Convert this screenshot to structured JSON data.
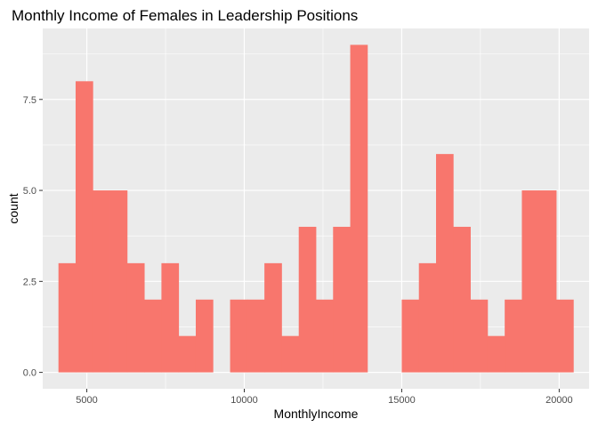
{
  "chart_data": {
    "type": "bar",
    "subtype": "histogram",
    "title": "Monthly Income of Females in Leadership Positions",
    "xlabel": "MonthlyIncome",
    "ylabel": "count",
    "bar_color": "#F8766D",
    "panel_background": "#EBEBEB",
    "grid_color": "#FFFFFF",
    "grid": true,
    "legend": "none",
    "xlim": [
      3600,
      20950
    ],
    "ylim": [
      -0.45,
      9.45
    ],
    "x_ticks": [
      5000,
      10000,
      15000,
      20000
    ],
    "x_tick_labels": [
      "5000",
      "10000",
      "15000",
      "20000"
    ],
    "y_ticks": [
      0,
      2.5,
      5,
      7.5
    ],
    "y_tick_labels": [
      "0.0",
      "2.5",
      "5.0",
      "7.5"
    ],
    "bin_width": 545,
    "bins": [
      {
        "x0": 4100,
        "x1": 4645,
        "count": 3
      },
      {
        "x0": 4645,
        "x1": 5190,
        "count": 8
      },
      {
        "x0": 5190,
        "x1": 5735,
        "count": 5
      },
      {
        "x0": 5735,
        "x1": 6280,
        "count": 5
      },
      {
        "x0": 6280,
        "x1": 6825,
        "count": 3
      },
      {
        "x0": 6825,
        "x1": 7370,
        "count": 2
      },
      {
        "x0": 7370,
        "x1": 7915,
        "count": 3
      },
      {
        "x0": 7915,
        "x1": 8460,
        "count": 1
      },
      {
        "x0": 8460,
        "x1": 9005,
        "count": 2
      },
      {
        "x0": 9550,
        "x1": 10095,
        "count": 2
      },
      {
        "x0": 10095,
        "x1": 10640,
        "count": 2
      },
      {
        "x0": 10640,
        "x1": 11185,
        "count": 3
      },
      {
        "x0": 11185,
        "x1": 11730,
        "count": 1
      },
      {
        "x0": 11730,
        "x1": 12275,
        "count": 4
      },
      {
        "x0": 12275,
        "x1": 12820,
        "count": 2
      },
      {
        "x0": 12820,
        "x1": 13365,
        "count": 4
      },
      {
        "x0": 13365,
        "x1": 13910,
        "count": 9
      },
      {
        "x0": 15000,
        "x1": 15545,
        "count": 2
      },
      {
        "x0": 15545,
        "x1": 16090,
        "count": 3
      },
      {
        "x0": 16090,
        "x1": 16635,
        "count": 6
      },
      {
        "x0": 16635,
        "x1": 17180,
        "count": 4
      },
      {
        "x0": 17180,
        "x1": 17725,
        "count": 2
      },
      {
        "x0": 17725,
        "x1": 18270,
        "count": 1
      },
      {
        "x0": 18270,
        "x1": 18815,
        "count": 2
      },
      {
        "x0": 18815,
        "x1": 19360,
        "count": 5
      },
      {
        "x0": 19360,
        "x1": 19905,
        "count": 5
      },
      {
        "x0": 19905,
        "x1": 20450,
        "count": 2
      }
    ]
  }
}
